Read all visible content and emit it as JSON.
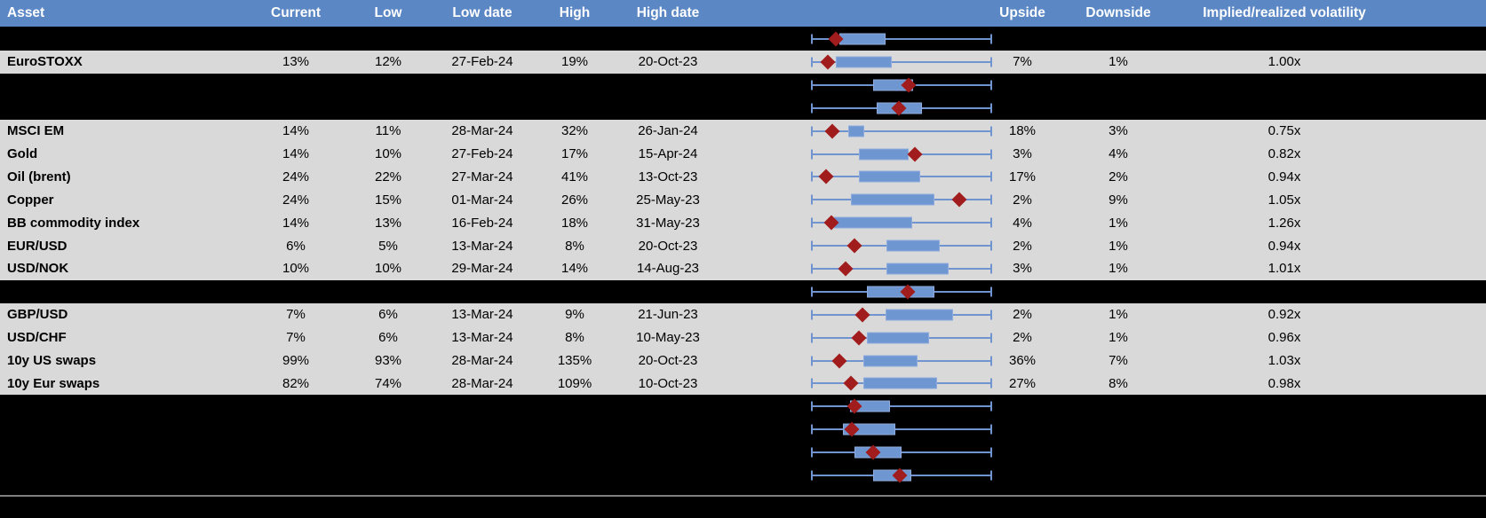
{
  "colors": {
    "header_bg": "#5b87c5",
    "header_text": "#ffffff",
    "row_bg": "#d9d9d9",
    "band_bg": "#000000",
    "box_fill": "#6e96d1",
    "box_border": "#8fabdd",
    "whisker": "#7094d0",
    "diamond": "#a11c1c",
    "divider_line": "#7f7f7f",
    "cell_text": "#000000"
  },
  "columns": {
    "asset": "Asset",
    "current": "Current",
    "low": "Low",
    "low_date": "Low date",
    "high": "High",
    "high_date": "High date",
    "plot": "",
    "upside": "Upside",
    "downside": "Downside",
    "impl_real": "Implied/realized volatility"
  },
  "chart_data": {
    "type": "table",
    "description": "Implied volatility table with embedded horizontal box plots; diamond marker shows current level, whiskers span the 12m low-high range",
    "boxplot_units": "percent of whisker span (0 = left whisker end, 100 = right whisker end); box = [q1,q3], pt = diamond marker",
    "rows": [
      {
        "kind": "spacer",
        "box": {
          "q1": 15.7,
          "q3": 41.2,
          "pt": 13.7
        }
      },
      {
        "kind": "data",
        "asset": "EuroSTOXX",
        "current": "13%",
        "low": "12%",
        "low_date": "27-Feb-24",
        "high": "19%",
        "high_date": "20-Oct-23",
        "upside": "7%",
        "downside": "1%",
        "impl_real": "1.00x",
        "box": {
          "q1": 13.7,
          "q3": 44.6,
          "pt": 9.3
        }
      },
      {
        "kind": "spacer",
        "box": {
          "q1": 34.3,
          "q3": 56.4,
          "pt": 53.9
        }
      },
      {
        "kind": "spacer",
        "box": {
          "q1": 36.3,
          "q3": 61.3,
          "pt": 48.5
        }
      },
      {
        "kind": "data",
        "asset": "MSCI EM",
        "current": "14%",
        "low": "11%",
        "low_date": "28-Mar-24",
        "high": "32%",
        "high_date": "26-Jan-24",
        "upside": "18%",
        "downside": "3%",
        "impl_real": "0.75x",
        "box": {
          "q1": 20.6,
          "q3": 29.4,
          "pt": 11.8
        }
      },
      {
        "kind": "data",
        "asset": "Gold",
        "current": "14%",
        "low": "10%",
        "low_date": "27-Feb-24",
        "high": "17%",
        "high_date": "15-Apr-24",
        "upside": "3%",
        "downside": "4%",
        "impl_real": "0.82x",
        "box": {
          "q1": 26.5,
          "q3": 53.9,
          "pt": 57.4
        }
      },
      {
        "kind": "data",
        "asset": "Oil (brent)",
        "current": "24%",
        "low": "22%",
        "low_date": "27-Mar-24",
        "high": "41%",
        "high_date": "13-Oct-23",
        "upside": "17%",
        "downside": "2%",
        "impl_real": "0.94x",
        "box": {
          "q1": 26.5,
          "q3": 60.3,
          "pt": 8.3
        }
      },
      {
        "kind": "data",
        "asset": "Copper",
        "current": "24%",
        "low": "15%",
        "low_date": "01-Mar-24",
        "high": "26%",
        "high_date": "25-May-23",
        "upside": "2%",
        "downside": "9%",
        "impl_real": "1.05x",
        "box": {
          "q1": 22.1,
          "q3": 68.1,
          "pt": 81.9
        }
      },
      {
        "kind": "data",
        "asset": "BB commodity index",
        "current": "14%",
        "low": "13%",
        "low_date": "16-Feb-24",
        "high": "18%",
        "high_date": "31-May-23",
        "upside": "4%",
        "downside": "1%",
        "impl_real": "1.26x",
        "box": {
          "q1": 12.7,
          "q3": 55.9,
          "pt": 11.3
        }
      },
      {
        "kind": "data",
        "asset": "EUR/USD",
        "current": "6%",
        "low": "5%",
        "low_date": "13-Mar-24",
        "high": "8%",
        "high_date": "20-Oct-23",
        "upside": "2%",
        "downside": "1%",
        "impl_real": "0.94x",
        "box": {
          "q1": 41.7,
          "q3": 71.1,
          "pt": 24.0
        }
      },
      {
        "kind": "data",
        "asset": "USD/NOK",
        "current": "10%",
        "low": "10%",
        "low_date": "29-Mar-24",
        "high": "14%",
        "high_date": "14-Aug-23",
        "upside": "3%",
        "downside": "1%",
        "impl_real": "1.01x",
        "box": {
          "q1": 41.7,
          "q3": 76.0,
          "pt": 19.1
        }
      },
      {
        "kind": "spacer",
        "box": {
          "q1": 30.9,
          "q3": 68.1,
          "pt": 53.4
        }
      },
      {
        "kind": "data",
        "asset": "GBP/USD",
        "current": "7%",
        "low": "6%",
        "low_date": "13-Mar-24",
        "high": "9%",
        "high_date": "21-Jun-23",
        "upside": "2%",
        "downside": "1%",
        "impl_real": "0.92x",
        "box": {
          "q1": 41.2,
          "q3": 78.4,
          "pt": 28.4
        }
      },
      {
        "kind": "data",
        "asset": "USD/CHF",
        "current": "7%",
        "low": "6%",
        "low_date": "13-Mar-24",
        "high": "8%",
        "high_date": "10-May-23",
        "upside": "2%",
        "downside": "1%",
        "impl_real": "0.96x",
        "box": {
          "q1": 30.9,
          "q3": 65.2,
          "pt": 26.5
        }
      },
      {
        "kind": "data",
        "asset": "10y US swaps",
        "current": "99%",
        "low": "93%",
        "low_date": "28-Mar-24",
        "high": "135%",
        "high_date": "20-Oct-23",
        "upside": "36%",
        "downside": "7%",
        "impl_real": "1.03x",
        "box": {
          "q1": 28.9,
          "q3": 58.8,
          "pt": 15.7
        }
      },
      {
        "kind": "data",
        "asset": "10y Eur swaps",
        "current": "82%",
        "low": "74%",
        "low_date": "28-Mar-24",
        "high": "109%",
        "high_date": "10-Oct-23",
        "upside": "27%",
        "downside": "8%",
        "impl_real": "0.98x",
        "box": {
          "q1": 28.9,
          "q3": 69.6,
          "pt": 22.1
        }
      },
      {
        "kind": "spacer",
        "box": {
          "q1": 21.6,
          "q3": 43.6,
          "pt": 24.0
        }
      },
      {
        "kind": "spacer",
        "box": {
          "q1": 17.6,
          "q3": 46.6,
          "pt": 22.5
        }
      },
      {
        "kind": "spacer",
        "box": {
          "q1": 24.0,
          "q3": 50.0,
          "pt": 34.3
        }
      },
      {
        "kind": "spacer",
        "box": {
          "q1": 34.3,
          "q3": 55.4,
          "pt": 49.0
        }
      }
    ]
  }
}
